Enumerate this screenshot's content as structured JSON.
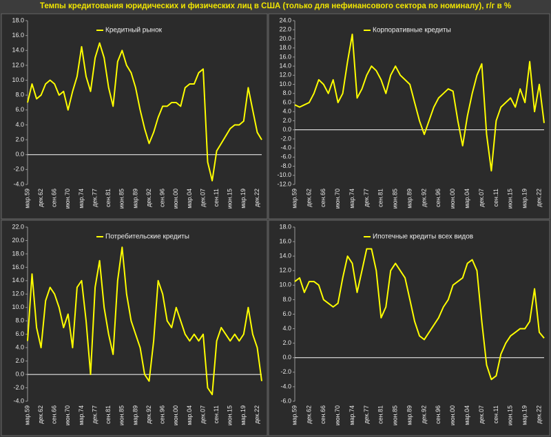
{
  "title": "Темпы кредитования юридических и физических лиц в США (только для нефинансового сектора по номиналу), г/г в %",
  "chart_data": [
    {
      "type": "line",
      "categories": [
        "мар.59",
        null,
        null,
        "дек.62",
        null,
        null,
        "сен.66",
        null,
        null,
        "июн.70",
        null,
        null,
        "мар.74",
        null,
        null,
        "дек.77",
        null,
        null,
        "сен.81",
        null,
        null,
        "июн.85",
        null,
        null,
        "мар.89",
        null,
        null,
        "дек.92",
        null,
        null,
        "сен.96",
        null,
        null,
        "июн.00",
        null,
        null,
        "мар.04",
        null,
        null,
        "дек.07",
        null,
        null,
        "сен.11",
        null,
        null,
        "июн.15",
        null,
        null,
        "мар.19",
        null,
        null,
        "дек.22",
        null
      ],
      "series": [
        {
          "name": "Кредитный рынок",
          "color": "#ffff00",
          "values": [
            7.0,
            9.5,
            7.5,
            8.0,
            9.5,
            10.0,
            9.5,
            8.0,
            8.5,
            6.0,
            8.5,
            10.5,
            14.5,
            10.5,
            8.5,
            13.0,
            15.0,
            13.0,
            9.0,
            6.5,
            12.5,
            14.0,
            12.0,
            11.0,
            9.0,
            6.0,
            3.5,
            1.5,
            3.0,
            5.0,
            6.5,
            6.5,
            7.0,
            7.0,
            6.5,
            9.0,
            9.5,
            9.5,
            11.0,
            11.5,
            -1.0,
            -3.5,
            0.5,
            1.5,
            2.5,
            3.5,
            4.0,
            4.0,
            4.5,
            9.0,
            6.0,
            3.0,
            2.0
          ]
        }
      ],
      "ylim": [
        -4,
        18
      ],
      "yticks": [
        {
          "value": -4,
          "label": "-4.0"
        },
        {
          "value": -2,
          "label": "-2.0"
        },
        {
          "value": 0,
          "label": "0.0"
        },
        {
          "value": 2,
          "label": "2.0"
        },
        {
          "value": 4,
          "label": "4.0"
        },
        {
          "value": 6,
          "label": "6.0"
        },
        {
          "value": 8,
          "label": "8.0"
        },
        {
          "value": 10,
          "label": "10.0"
        },
        {
          "value": 12,
          "label": "12.0"
        },
        {
          "value": 14,
          "label": "14.0"
        },
        {
          "value": 16,
          "label": "16.0"
        },
        {
          "value": 18,
          "label": "18.0"
        }
      ]
    },
    {
      "type": "line",
      "categories": [
        "мар.59",
        null,
        null,
        "дек.62",
        null,
        null,
        "сен.66",
        null,
        null,
        "июн.70",
        null,
        null,
        "мар.74",
        null,
        null,
        "дек.77",
        null,
        null,
        "сен.81",
        null,
        null,
        "июн.85",
        null,
        null,
        "мар.89",
        null,
        null,
        "дек.92",
        null,
        null,
        "сен.96",
        null,
        null,
        "июн.00",
        null,
        null,
        "мар.04",
        null,
        null,
        "дек.07",
        null,
        null,
        "сен.11",
        null,
        null,
        "июн.15",
        null,
        null,
        "мар.19",
        null,
        null,
        "дек.22",
        null
      ],
      "series": [
        {
          "name": "Корпоративные кредиты",
          "color": "#ffff00",
          "values": [
            5.5,
            5.0,
            5.5,
            6.0,
            8.0,
            11.0,
            10.0,
            8.0,
            11.0,
            6.0,
            8.0,
            15.0,
            21.0,
            7.0,
            9.0,
            12.0,
            14.0,
            13.0,
            11.0,
            8.0,
            12.0,
            14.0,
            12.0,
            11.0,
            10.0,
            6.0,
            2.0,
            -1.0,
            2.0,
            5.0,
            7.0,
            8.0,
            9.0,
            8.5,
            2.0,
            -3.5,
            3.0,
            8.0,
            12.0,
            14.5,
            -1.0,
            -9.0,
            2.0,
            5.0,
            6.0,
            7.0,
            5.0,
            9.0,
            6.0,
            15.0,
            4.0,
            10.0,
            1.5
          ]
        }
      ],
      "ylim": [
        -12,
        24
      ],
      "yticks": [
        {
          "value": -12,
          "label": "-12.0"
        },
        {
          "value": -10,
          "label": "-10.0"
        },
        {
          "value": -8,
          "label": "-8.0"
        },
        {
          "value": -6,
          "label": "-6.0"
        },
        {
          "value": -4,
          "label": "-4.0"
        },
        {
          "value": -2,
          "label": "-2.0"
        },
        {
          "value": 0,
          "label": "0.0"
        },
        {
          "value": 2,
          "label": "2.0"
        },
        {
          "value": 4,
          "label": "4.0"
        },
        {
          "value": 6,
          "label": "6.0"
        },
        {
          "value": 8,
          "label": "8.0"
        },
        {
          "value": 10,
          "label": "10.0"
        },
        {
          "value": 12,
          "label": "12.0"
        },
        {
          "value": 14,
          "label": "14.0"
        },
        {
          "value": 16,
          "label": "16.0"
        },
        {
          "value": 18,
          "label": "18.0"
        },
        {
          "value": 20,
          "label": "20.0"
        },
        {
          "value": 22,
          "label": "22.0"
        },
        {
          "value": 24,
          "label": "24.0"
        }
      ]
    },
    {
      "type": "line",
      "categories": [
        "мар.59",
        null,
        null,
        "дек.62",
        null,
        null,
        "сен.66",
        null,
        null,
        "июн.70",
        null,
        null,
        "мар.74",
        null,
        null,
        "дек.77",
        null,
        null,
        "сен.81",
        null,
        null,
        "июн.85",
        null,
        null,
        "мар.89",
        null,
        null,
        "дек.92",
        null,
        null,
        "сен.96",
        null,
        null,
        "июн.00",
        null,
        null,
        "мар.04",
        null,
        null,
        "дек.07",
        null,
        null,
        "сен.11",
        null,
        null,
        "июн.15",
        null,
        null,
        "мар.19",
        null,
        null,
        "дек.22",
        null
      ],
      "series": [
        {
          "name": "Потребительские кредиты",
          "color": "#ffff00",
          "values": [
            5,
            15,
            7,
            4,
            11,
            13,
            12,
            10,
            7,
            9,
            4,
            13,
            14,
            8,
            0,
            13,
            17,
            10,
            6,
            3,
            14,
            19,
            12,
            8,
            6,
            4,
            0,
            -1,
            5,
            14,
            12,
            8,
            7,
            10,
            8,
            6,
            5,
            6,
            5,
            6,
            -2,
            -3,
            5,
            7,
            6,
            5,
            6,
            5,
            6,
            10,
            6,
            4,
            -1
          ]
        }
      ],
      "ylim": [
        -4,
        22
      ],
      "yticks": [
        {
          "value": -4,
          "label": "-4.0"
        },
        {
          "value": -2,
          "label": "-2.0"
        },
        {
          "value": 0,
          "label": "0.0"
        },
        {
          "value": 2,
          "label": "2.0"
        },
        {
          "value": 4,
          "label": "4.0"
        },
        {
          "value": 6,
          "label": "6.0"
        },
        {
          "value": 8,
          "label": "8.0"
        },
        {
          "value": 10,
          "label": "10.0"
        },
        {
          "value": 12,
          "label": "12.0"
        },
        {
          "value": 14,
          "label": "14.0"
        },
        {
          "value": 16,
          "label": "16.0"
        },
        {
          "value": 18,
          "label": "18.0"
        },
        {
          "value": 20,
          "label": "20.0"
        },
        {
          "value": 22,
          "label": "22.0"
        }
      ]
    },
    {
      "type": "line",
      "categories": [
        "мар.59",
        null,
        null,
        "дек.62",
        null,
        null,
        "сен.66",
        null,
        null,
        "июн.70",
        null,
        null,
        "мар.74",
        null,
        null,
        "дек.77",
        null,
        null,
        "сен.81",
        null,
        null,
        "июн.85",
        null,
        null,
        "мар.89",
        null,
        null,
        "дек.92",
        null,
        null,
        "сен.96",
        null,
        null,
        "июн.00",
        null,
        null,
        "мар.04",
        null,
        null,
        "дек.07",
        null,
        null,
        "сен.11",
        null,
        null,
        "июн.15",
        null,
        null,
        "мар.19",
        null,
        null,
        "дек.22",
        null
      ],
      "series": [
        {
          "name": "Ипотечные кредиты всех видов",
          "color": "#ffff00",
          "values": [
            10.5,
            11,
            9,
            10.5,
            10.5,
            10,
            8,
            7.5,
            7,
            7.5,
            11,
            14,
            13,
            9,
            12,
            15,
            15,
            12,
            5.5,
            7,
            12,
            13,
            12,
            11,
            8,
            5,
            3,
            2.5,
            3.5,
            4.5,
            5.5,
            7,
            8,
            10,
            10.5,
            11,
            13,
            13.5,
            12,
            5,
            -1,
            -3,
            -2.5,
            0.5,
            2,
            3,
            3.5,
            4,
            4,
            5,
            9.5,
            3.5,
            2.7
          ]
        }
      ],
      "ylim": [
        -6,
        18
      ],
      "yticks": [
        {
          "value": -6,
          "label": "-6.0"
        },
        {
          "value": -4,
          "label": "-4.0"
        },
        {
          "value": -2,
          "label": "-2.0"
        },
        {
          "value": 0,
          "label": "0.0"
        },
        {
          "value": 2,
          "label": "2.0"
        },
        {
          "value": 4,
          "label": "4.0"
        },
        {
          "value": 6,
          "label": "6.0"
        },
        {
          "value": 8,
          "label": "8.0"
        },
        {
          "value": 10,
          "label": "10.0"
        },
        {
          "value": 12,
          "label": "12.0"
        },
        {
          "value": 14,
          "label": "14.0"
        },
        {
          "value": 16,
          "label": "16.0"
        },
        {
          "value": 18,
          "label": "18.0"
        }
      ]
    }
  ]
}
